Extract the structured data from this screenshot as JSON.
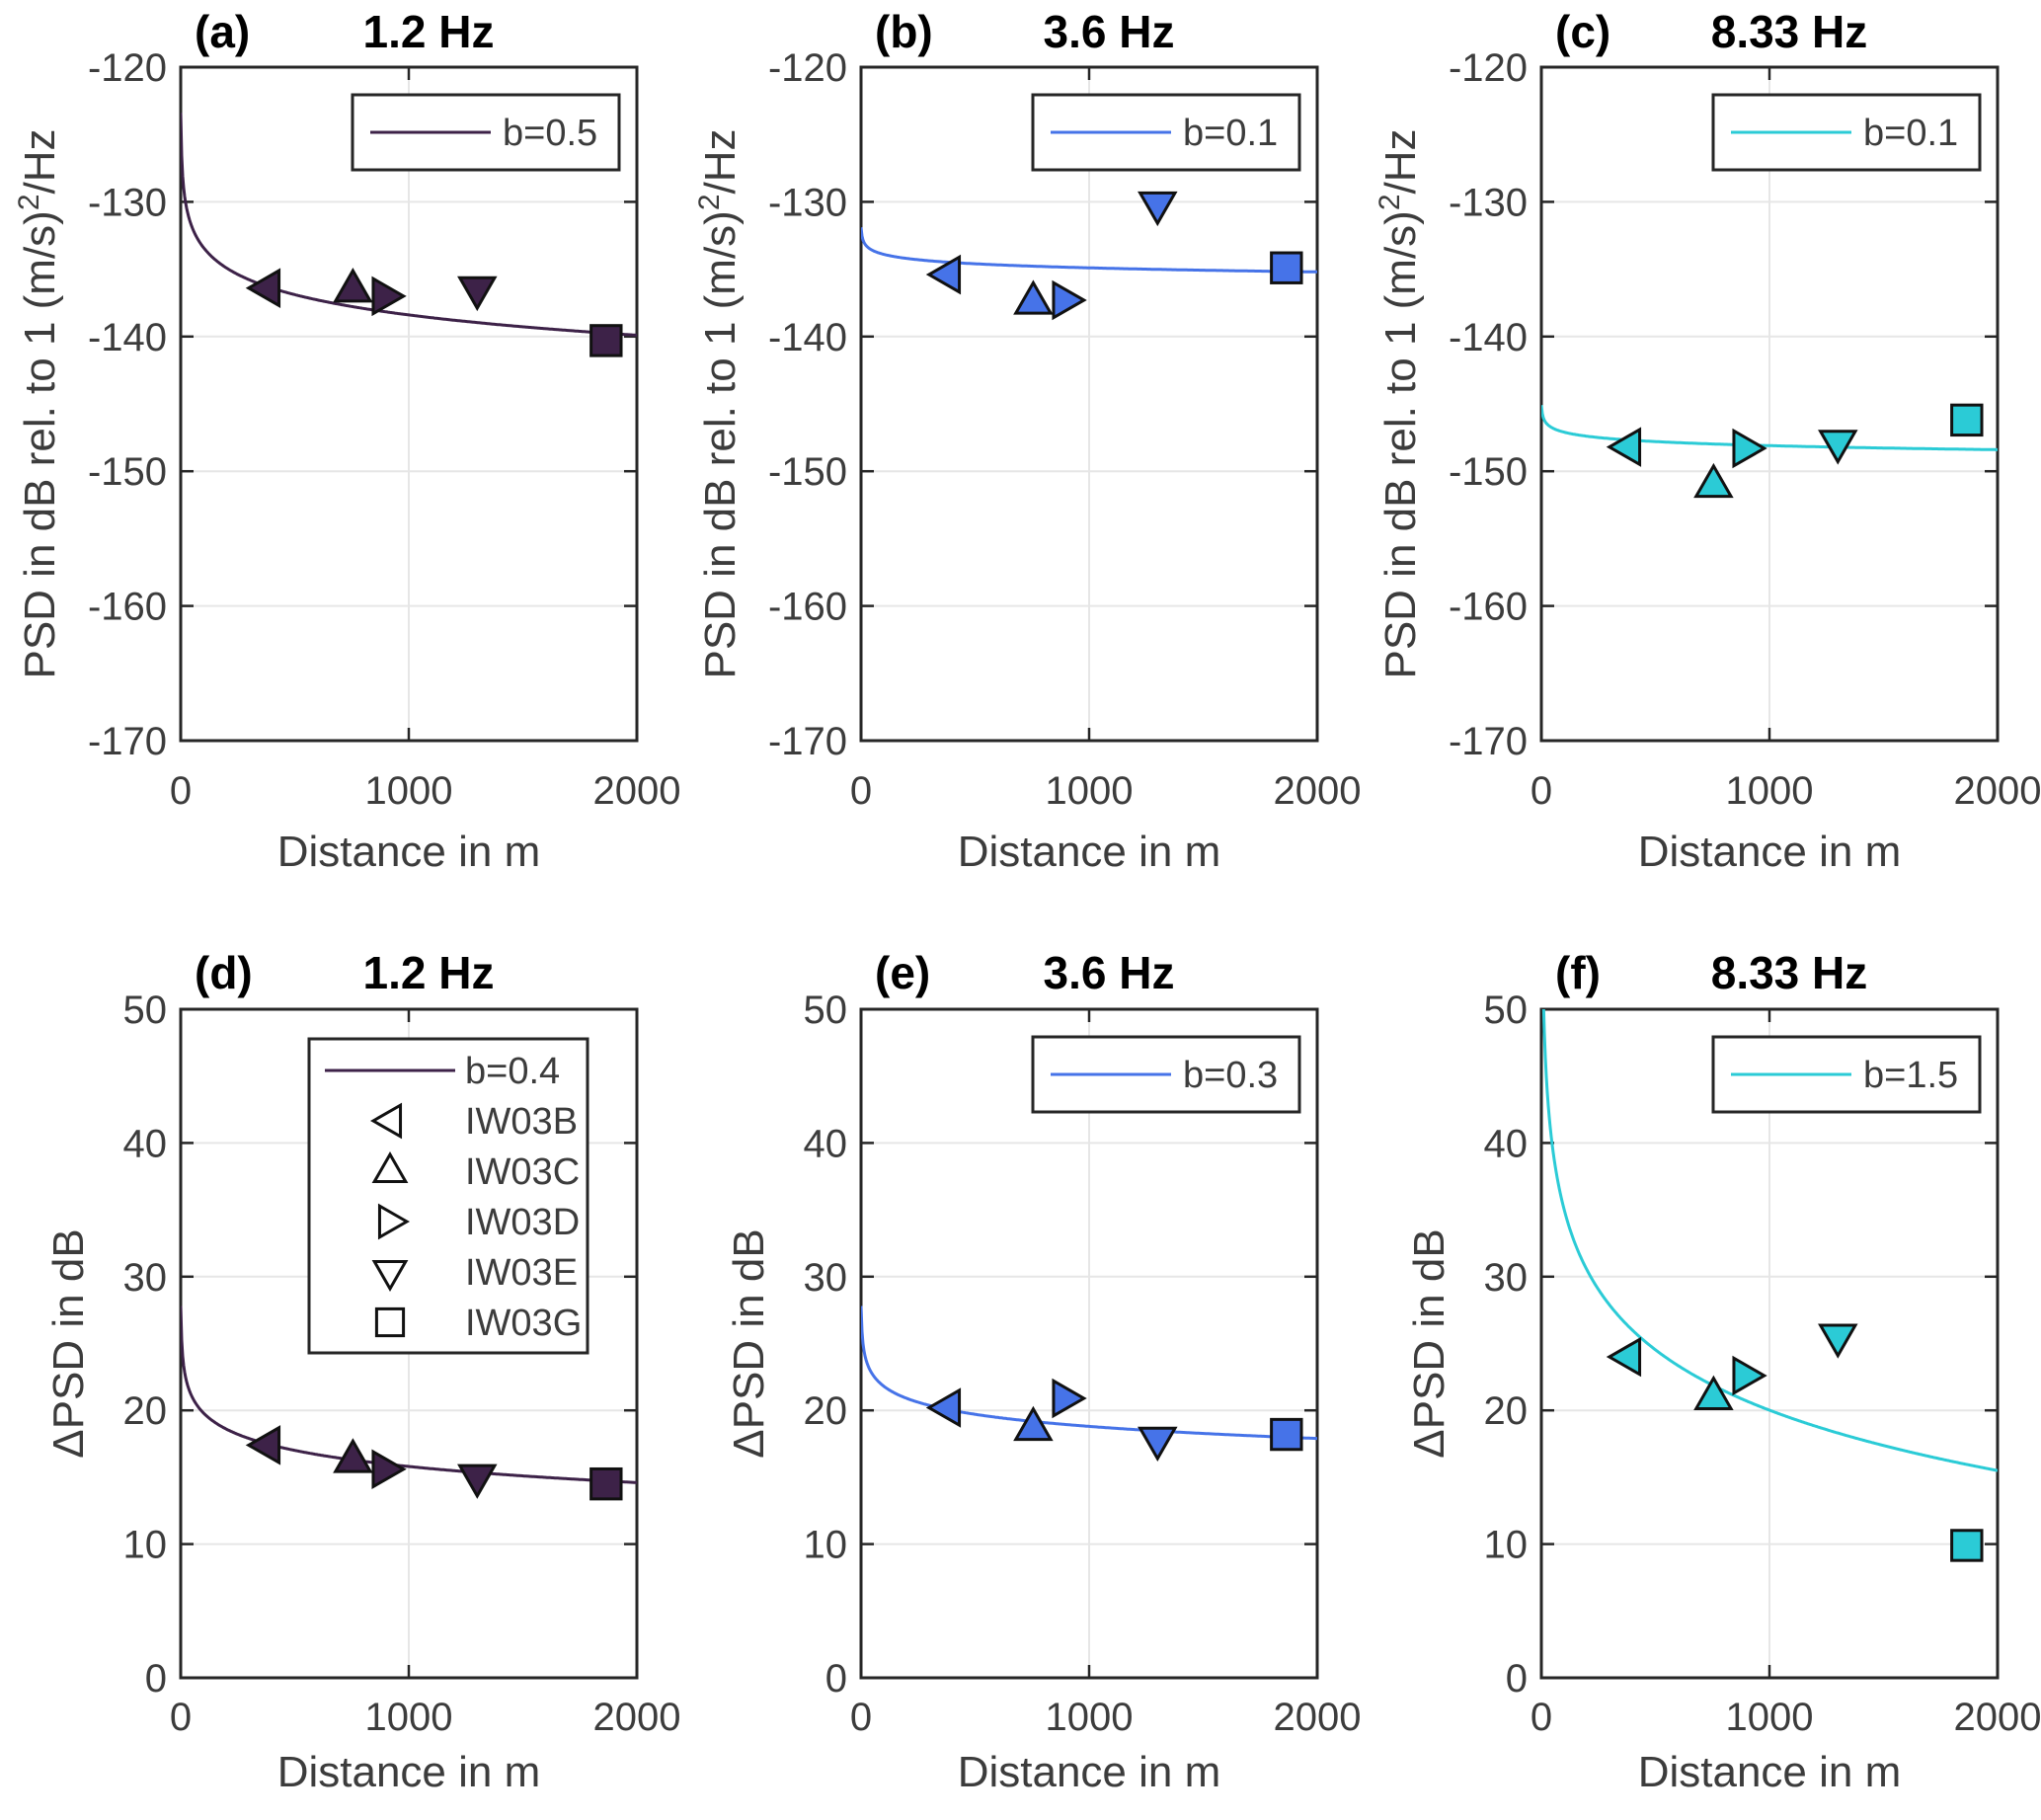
{
  "figure": {
    "x_axis": {
      "label": "Distance in m",
      "tick_labels": [
        "0",
        "1000",
        "2000"
      ],
      "tick_values": [
        0,
        1000,
        2000
      ],
      "range": [
        0,
        2000
      ]
    },
    "stations": [
      {
        "label": "IW03B",
        "marker": "triangle-left"
      },
      {
        "label": "IW03C",
        "marker": "triangle-up"
      },
      {
        "label": "IW03D",
        "marker": "triangle-right"
      },
      {
        "label": "IW03E",
        "marker": "triangle-down"
      },
      {
        "label": "IW03G",
        "marker": "square"
      }
    ],
    "distances_m": [
      380,
      755,
      895,
      1300,
      1865
    ],
    "style": {
      "axis_color": "#262626",
      "grid_color": "#e6e6e6",
      "tick_text_color": "#3c3c3c",
      "title_color": "#000000",
      "marker_edge_color": "#111111",
      "background": "#ffffff",
      "color_1_2hz": "#3d2248",
      "color_3_6hz": "#4673e8",
      "color_8_33hz": "#2bcbd6"
    }
  },
  "chart_data": [
    {
      "type": "scatter",
      "panel_letter": "(a)",
      "title": "1.2 Hz",
      "color": "#3d2248",
      "y_axis": {
        "label_main": "PSD in dB rel. to 1 (m/s)",
        "label_sup": "2",
        "label_post": "/Hz",
        "range": [
          -170,
          -120
        ],
        "ticks": [
          -170,
          -160,
          -150,
          -140,
          -130,
          -120
        ]
      },
      "fit": {
        "legend_label": "b=0.5",
        "b": 0.5,
        "y_at_2000": -139.9
      },
      "legend": "fit-only",
      "x": [
        380,
        755,
        895,
        1300,
        1865
      ],
      "y": [
        -136.4,
        -136.5,
        -137.0,
        -136.5,
        -140.3
      ]
    },
    {
      "type": "scatter",
      "panel_letter": "(b)",
      "title": "3.6 Hz",
      "color": "#4673e8",
      "y_axis": {
        "label_main": "PSD in dB rel. to 1 (m/s)",
        "label_sup": "2",
        "label_post": "/Hz",
        "range": [
          -170,
          -120
        ],
        "ticks": [
          -170,
          -160,
          -150,
          -140,
          -130,
          -120
        ]
      },
      "fit": {
        "legend_label": "b=0.1",
        "b": 0.1,
        "y_at_2000": -135.2
      },
      "legend": "fit-only",
      "x": [
        380,
        755,
        895,
        1300,
        1865
      ],
      "y": [
        -135.4,
        -137.4,
        -137.3,
        -130.2,
        -134.9
      ]
    },
    {
      "type": "scatter",
      "panel_letter": "(c)",
      "title": "8.33 Hz",
      "color": "#2bcbd6",
      "y_axis": {
        "label_main": "PSD in dB rel. to 1 (m/s)",
        "label_sup": "2",
        "label_post": "/Hz",
        "range": [
          -170,
          -120
        ],
        "ticks": [
          -170,
          -160,
          -150,
          -140,
          -130,
          -120
        ]
      },
      "fit": {
        "legend_label": "b=0.1",
        "b": 0.1,
        "y_at_2000": -148.4
      },
      "legend": "fit-only",
      "x": [
        380,
        755,
        895,
        1300,
        1865
      ],
      "y": [
        -148.2,
        -151.0,
        -148.3,
        -147.9,
        -146.2
      ]
    },
    {
      "type": "scatter",
      "panel_letter": "(d)",
      "title": "1.2 Hz",
      "color": "#3d2248",
      "y_axis": {
        "label_main": "ΔPSD in dB",
        "label_sup": "",
        "label_post": "",
        "range": [
          0,
          50
        ],
        "ticks": [
          0,
          10,
          20,
          30,
          40,
          50
        ]
      },
      "fit": {
        "legend_label": "b=0.4",
        "b": 0.4,
        "y_at_2000": 14.6
      },
      "legend": "fit-and-stations",
      "x": [
        380,
        755,
        895,
        1300,
        1865
      ],
      "y": [
        17.4,
        16.3,
        15.6,
        15.0,
        14.5
      ]
    },
    {
      "type": "scatter",
      "panel_letter": "(e)",
      "title": "3.6 Hz",
      "color": "#4673e8",
      "y_axis": {
        "label_main": "ΔPSD in dB",
        "label_sup": "",
        "label_post": "",
        "range": [
          0,
          50
        ],
        "ticks": [
          0,
          10,
          20,
          30,
          40,
          50
        ]
      },
      "fit": {
        "legend_label": "b=0.3",
        "b": 0.3,
        "y_at_2000": 17.9
      },
      "legend": "fit-only",
      "x": [
        380,
        755,
        895,
        1300,
        1865
      ],
      "y": [
        20.2,
        18.7,
        20.9,
        17.8,
        18.2
      ]
    },
    {
      "type": "scatter",
      "panel_letter": "(f)",
      "title": "8.33 Hz",
      "color": "#2bcbd6",
      "y_axis": {
        "label_main": "ΔPSD in dB",
        "label_sup": "",
        "label_post": "",
        "range": [
          0,
          50
        ],
        "ticks": [
          0,
          10,
          20,
          30,
          40,
          50
        ]
      },
      "fit": {
        "legend_label": "b=1.5",
        "b": 1.5,
        "y_at_2000": 15.5
      },
      "legend": "fit-only",
      "x": [
        380,
        755,
        895,
        1300,
        1865
      ],
      "y": [
        24.0,
        21.0,
        22.6,
        25.5,
        9.9
      ]
    }
  ]
}
